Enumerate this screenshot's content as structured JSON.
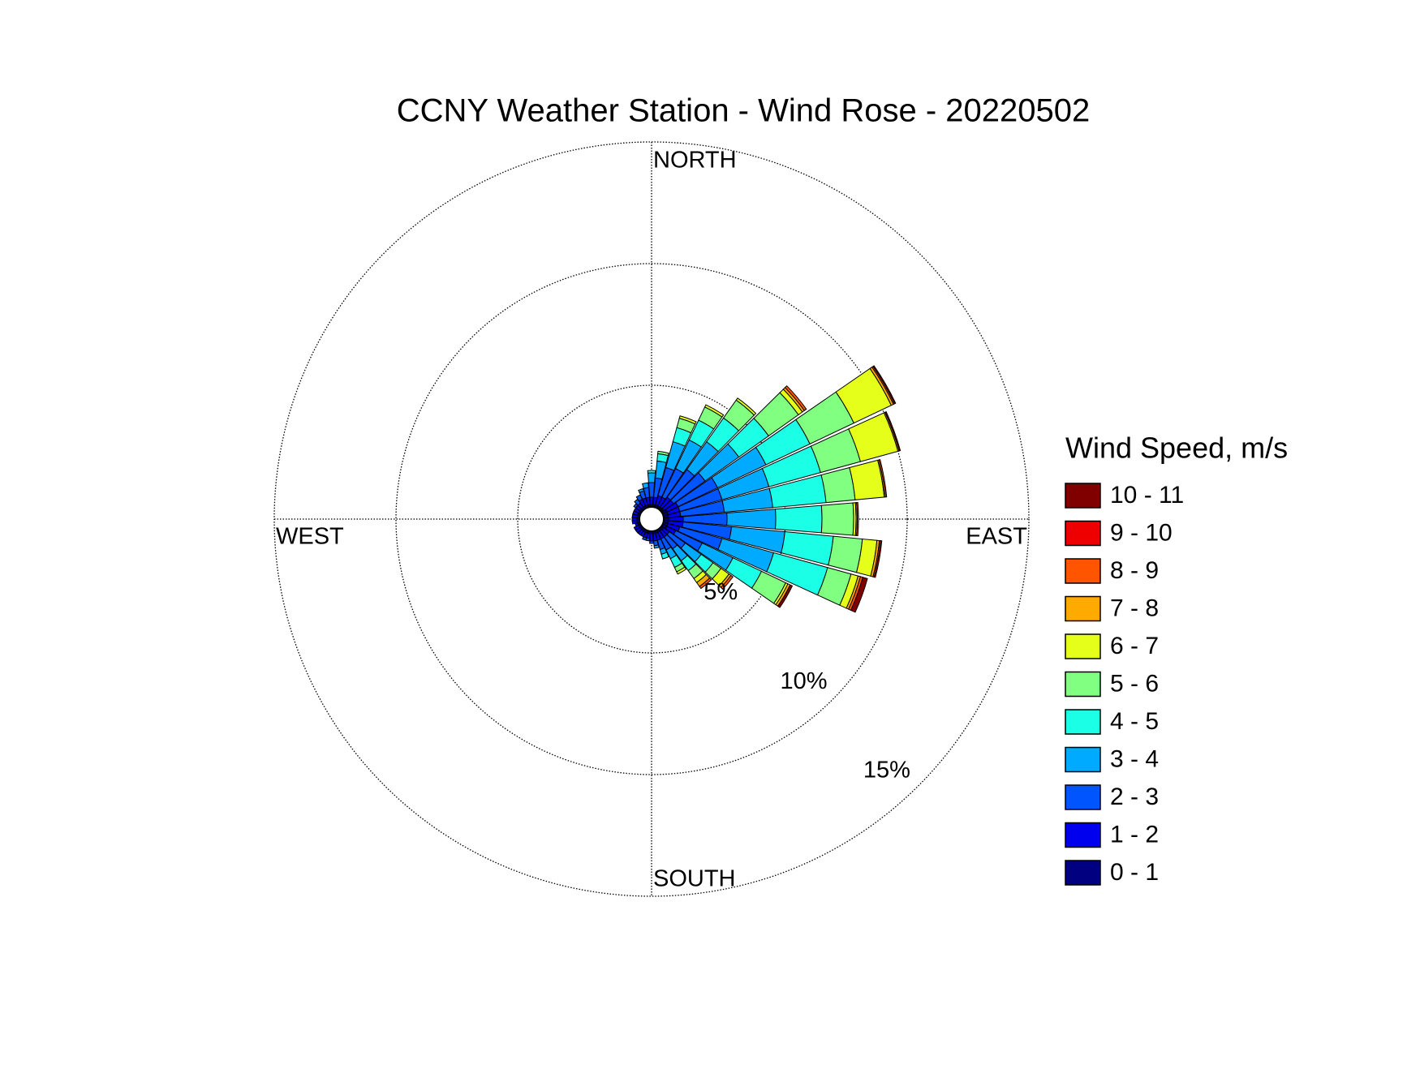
{
  "chart_data": {
    "type": "windrose",
    "title": "CCNY Weather Station - Wind Rose - 20220502",
    "legend_title": "Wind Speed, m/s",
    "direction_labels": {
      "north": "NORTH",
      "east": "EAST",
      "south": "SOUTH",
      "west": "WEST"
    },
    "x": [
      0,
      10,
      20,
      30,
      40,
      50,
      60,
      70,
      80,
      90,
      100,
      110,
      120,
      130,
      140,
      150,
      160,
      170,
      180,
      190,
      200,
      210,
      220,
      230,
      240,
      250,
      260,
      270,
      280,
      290,
      300,
      310,
      320,
      330,
      340,
      350
    ],
    "ylim": [
      0,
      15
    ],
    "yticks": [
      {
        "value": 5,
        "label": "5%"
      },
      {
        "value": 10,
        "label": "10%"
      },
      {
        "value": 15,
        "label": "15%"
      }
    ],
    "series": [
      {
        "name": "0 - 1",
        "color": "#000080",
        "values": [
          0.1,
          0.1,
          0.1,
          0.1,
          0.1,
          0.1,
          0.2,
          0.2,
          0.2,
          0.2,
          0.2,
          0.2,
          0.2,
          0.1,
          0.1,
          0.1,
          0.1,
          0.1,
          0.1,
          0.1,
          0.1,
          0.1,
          0.1,
          0.1,
          0.1,
          0.1,
          0.1,
          0.1,
          0.1,
          0.1,
          0.1,
          0.1,
          0.1,
          0.1,
          0.1,
          0.1
        ]
      },
      {
        "name": "1 - 2",
        "color": "#0000ee",
        "values": [
          0.3,
          0.3,
          0.4,
          0.4,
          0.5,
          0.5,
          0.5,
          0.5,
          0.5,
          0.6,
          0.6,
          0.5,
          0.4,
          0.3,
          0.3,
          0.3,
          0.3,
          0.3,
          0.3,
          0.2,
          0.2,
          0.2,
          0.2,
          0.2,
          0.2,
          0.1,
          0.2,
          0.2,
          0.2,
          0.2,
          0.2,
          0.2,
          0.2,
          0.3,
          0.3,
          0.3
        ]
      },
      {
        "name": "2 - 3",
        "color": "#0055ff",
        "values": [
          0.6,
          0.8,
          1.2,
          1.3,
          1.4,
          1.6,
          1.8,
          1.8,
          1.8,
          1.8,
          2.0,
          1.8,
          1.2,
          0.8,
          0.6,
          0.5,
          0.4,
          0.2,
          0.1,
          0.1,
          0.1,
          0,
          0,
          0,
          0,
          0,
          0,
          0,
          0,
          0,
          0,
          0.1,
          0.2,
          0.2,
          0.3,
          0.4
        ]
      },
      {
        "name": "3 - 4",
        "color": "#00aaff",
        "values": [
          0.4,
          0.7,
          1.1,
          1.3,
          1.4,
          1.7,
          2.2,
          2.0,
          2.0,
          2.0,
          2.2,
          2.2,
          1.4,
          0.8,
          0.6,
          0.4,
          0.2,
          0.1,
          0,
          0,
          0,
          0,
          0,
          0,
          0,
          0,
          0,
          0,
          0,
          0,
          0,
          0,
          0,
          0,
          0.1,
          0.2
        ]
      },
      {
        "name": "4 - 5",
        "color": "#1affe6",
        "values": [
          0.1,
          0.3,
          0.6,
          0.9,
          1.2,
          1.5,
          2.0,
          2.2,
          2.2,
          1.9,
          2.0,
          2.3,
          1.3,
          0.6,
          0.5,
          0.4,
          0.2,
          0,
          0,
          0,
          0,
          0,
          0,
          0,
          0,
          0,
          0,
          0,
          0,
          0,
          0,
          0,
          0,
          0,
          0,
          0
        ]
      },
      {
        "name": "5 - 6",
        "color": "#80ff80",
        "values": [
          0,
          0.1,
          0.4,
          0.6,
          0.9,
          1.5,
          2.0,
          1.7,
          1.2,
          1.3,
          1.2,
          1.0,
          1.1,
          0.4,
          0.4,
          0.2,
          0,
          0,
          0,
          0,
          0,
          0,
          0,
          0,
          0,
          0,
          0,
          0,
          0,
          0,
          0,
          0,
          0,
          0,
          0,
          0
        ]
      },
      {
        "name": "6 - 7",
        "color": "#e6ff1a",
        "values": [
          0,
          0,
          0.1,
          0.1,
          0.1,
          0.2,
          1.7,
          1.6,
          1.2,
          0.1,
          0.6,
          0.3,
          0.1,
          0.4,
          0.2,
          0.1,
          0,
          0,
          0,
          0,
          0,
          0,
          0,
          0,
          0,
          0,
          0,
          0,
          0,
          0,
          0,
          0,
          0,
          0,
          0,
          0
        ]
      },
      {
        "name": "7 - 8",
        "color": "#ffaa00",
        "values": [
          0,
          0,
          0,
          0,
          0,
          0.1,
          0.1,
          0.05,
          0.05,
          0.05,
          0.1,
          0.1,
          0.1,
          0.1,
          0.2,
          0,
          0,
          0,
          0,
          0,
          0,
          0,
          0,
          0,
          0,
          0,
          0,
          0,
          0,
          0,
          0,
          0,
          0,
          0,
          0,
          0
        ]
      },
      {
        "name": "8 - 9",
        "color": "#ff5500",
        "values": [
          0,
          0,
          0,
          0,
          0,
          0.1,
          0.05,
          0,
          0.05,
          0.05,
          0.05,
          0.1,
          0,
          0.1,
          0.1,
          0,
          0,
          0,
          0,
          0,
          0,
          0,
          0,
          0,
          0,
          0,
          0,
          0,
          0,
          0,
          0,
          0,
          0,
          0,
          0,
          0
        ]
      },
      {
        "name": "9 - 10",
        "color": "#ee0000",
        "values": [
          0,
          0,
          0,
          0,
          0,
          0,
          0,
          0,
          0,
          0,
          0.05,
          0,
          0,
          0,
          0,
          0,
          0,
          0,
          0,
          0,
          0,
          0,
          0,
          0,
          0,
          0,
          0,
          0,
          0,
          0,
          0,
          0,
          0,
          0,
          0,
          0
        ]
      },
      {
        "name": "10 - 11",
        "color": "#800000",
        "values": [
          0,
          0,
          0,
          0,
          0,
          0,
          0.05,
          0.05,
          0,
          0,
          0,
          0.2,
          0.1,
          0,
          0,
          0,
          0,
          0,
          0,
          0,
          0,
          0,
          0,
          0,
          0,
          0,
          0,
          0,
          0,
          0,
          0,
          0,
          0,
          0,
          0,
          0
        ]
      }
    ]
  }
}
